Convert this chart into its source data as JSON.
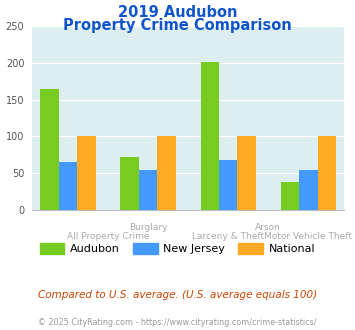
{
  "title_line1": "2019 Audubon",
  "title_line2": "Property Crime Comparison",
  "x_labels_top": [
    "",
    "Burglary",
    "",
    "Arson"
  ],
  "x_labels_bottom": [
    "All Property Crime",
    "",
    "Larceny & Theft",
    "Motor Vehicle Theft"
  ],
  "audubon": [
    165,
    72,
    201,
    38
  ],
  "new_jersey": [
    65,
    54,
    68,
    54
  ],
  "national": [
    100,
    100,
    100,
    100
  ],
  "arson_no_green": true,
  "colors": {
    "audubon": "#77cc22",
    "new_jersey": "#4499ff",
    "national": "#ffaa22"
  },
  "ylim": [
    0,
    250
  ],
  "yticks": [
    0,
    50,
    100,
    150,
    200,
    250
  ],
  "bg_color": "#ddeef0",
  "title_color": "#1155cc",
  "xlabel_color": "#aaaaaa",
  "footnote": "Compared to U.S. average. (U.S. average equals 100)",
  "copyright": "© 2025 CityRating.com - https://www.cityrating.com/crime-statistics/",
  "footnote_color": "#cc4400",
  "copyright_color": "#999999"
}
